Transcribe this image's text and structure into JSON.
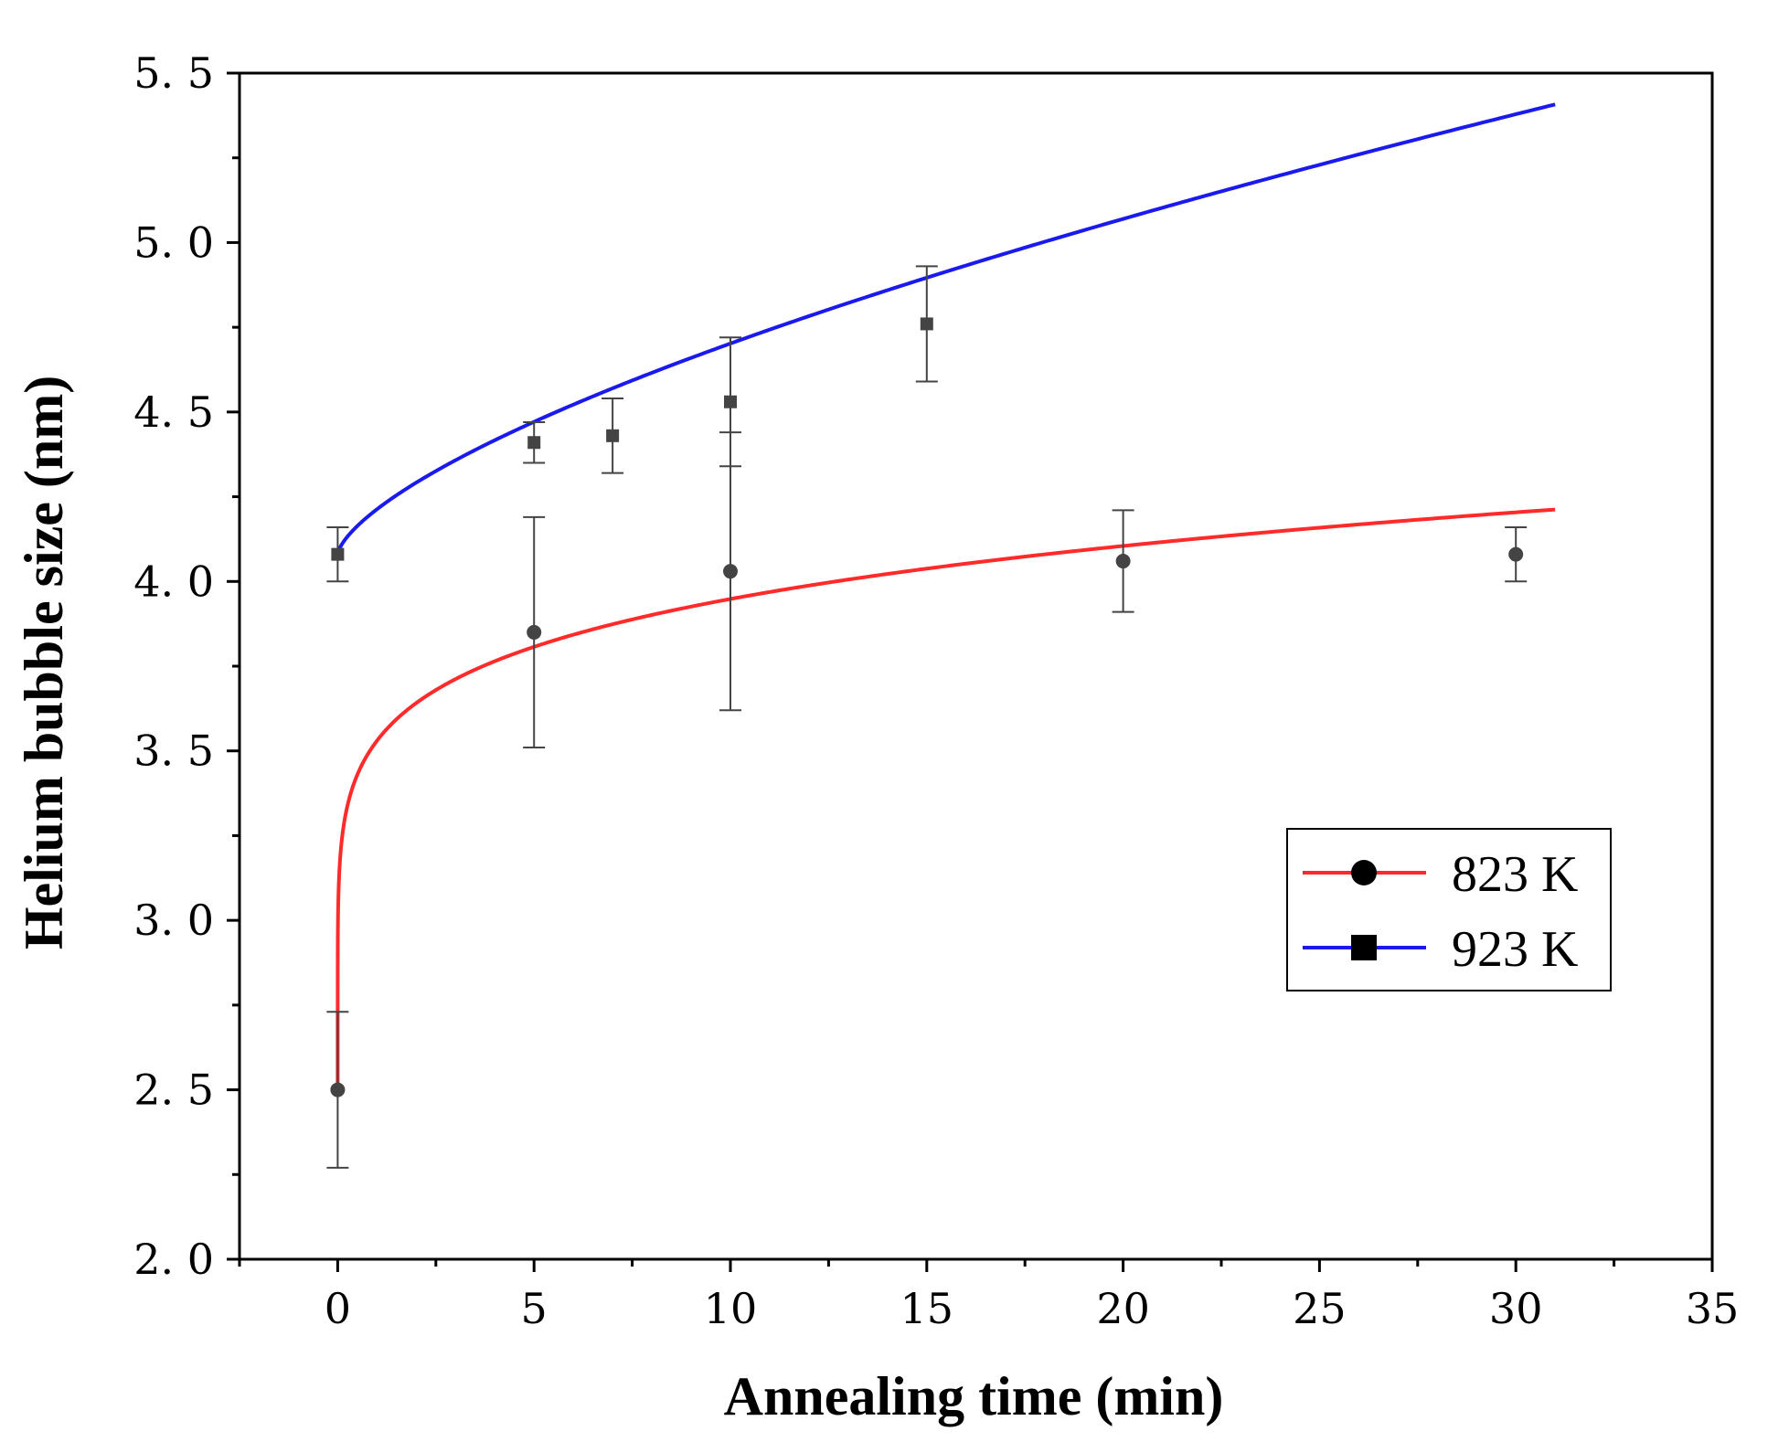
{
  "chart_data": {
    "type": "scatter",
    "title": "",
    "xlabel": "Annealing time (min)",
    "ylabel": "Helium bubble size (nm)",
    "xlim": [
      -2.5,
      35
    ],
    "ylim": [
      2.0,
      5.5
    ],
    "xticks": [
      0,
      5,
      10,
      15,
      20,
      25,
      30,
      35
    ],
    "xtick_labels": [
      "0",
      "5",
      "10",
      "15",
      "20",
      "25",
      "30",
      "35"
    ],
    "yticks": [
      2.0,
      2.5,
      3.0,
      3.5,
      4.0,
      4.5,
      5.0,
      5.5
    ],
    "ytick_labels": [
      "2. 0",
      "2. 5",
      "3. 0",
      "3. 5",
      "4. 0",
      "4. 5",
      "5. 0",
      "5. 5"
    ],
    "legend_position": "lower-right",
    "series": [
      {
        "name": "823 K",
        "marker": "circle",
        "color": "#ff2a2a",
        "x": [
          0,
          5,
          10,
          20,
          30
        ],
        "y": [
          2.5,
          3.85,
          4.03,
          4.06,
          4.08
        ],
        "err": [
          0.23,
          0.34,
          0.41,
          0.15,
          0.08
        ],
        "fit": {
          "form": "a + b*t^n",
          "a": 2.5,
          "b": 1.03,
          "n": 0.148,
          "x_end": 31
        }
      },
      {
        "name": "923 K",
        "marker": "square",
        "color": "#1a1aee",
        "x": [
          0,
          5,
          7,
          10,
          15
        ],
        "y": [
          4.08,
          4.41,
          4.43,
          4.53,
          4.76
        ],
        "err": [
          0.08,
          0.06,
          0.11,
          0.19,
          0.17
        ],
        "fit": {
          "form": "a + b*t^n",
          "a": 4.08,
          "b": 0.133,
          "n": 0.67,
          "x_end": 31
        }
      }
    ]
  }
}
